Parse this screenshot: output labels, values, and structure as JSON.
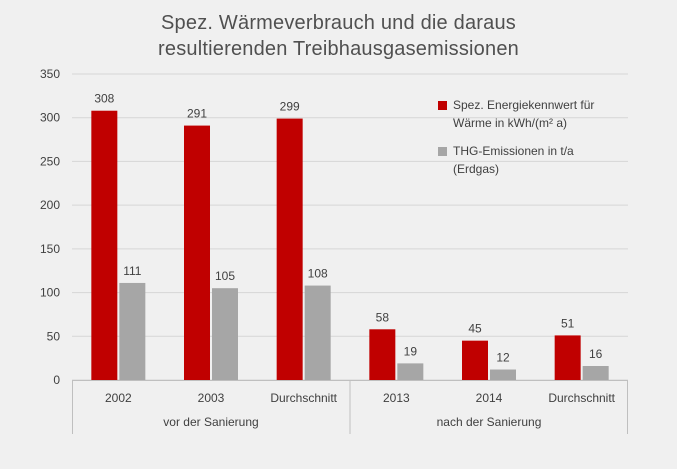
{
  "chart_data": {
    "type": "bar",
    "title": [
      "Spez. Wärmeverbrauch und die daraus",
      "resultierenden Treibhausgasemissionen"
    ],
    "categories": [
      "2002",
      "2003",
      "Durchschnitt",
      "2013",
      "2014",
      "Durchschnitt"
    ],
    "groups": [
      {
        "label": "vor der Sanierung",
        "categories": [
          0,
          1,
          2
        ]
      },
      {
        "label": "nach der Sanierung",
        "categories": [
          3,
          4,
          5
        ]
      }
    ],
    "series": [
      {
        "name": "Spez. Energiekennwert für Wärme in kWh/(m² a)",
        "values": [
          308,
          291,
          299,
          58,
          45,
          51
        ],
        "color": "#c00000"
      },
      {
        "name": "THG-Emissionen in t/a (Erdgas)",
        "values": [
          111,
          105,
          108,
          19,
          12,
          16
        ],
        "color": "#a6a6a6"
      }
    ],
    "ylim": [
      0,
      350
    ],
    "yticks": [
      "0",
      "50",
      "100",
      "150",
      "200",
      "250",
      "300",
      "350"
    ],
    "grid": true,
    "legend_position": "top-right",
    "data_labels": true
  },
  "legend": {
    "series1_line1": "Spez. Energiekennwert für",
    "series1_line2": "Wärme in kWh/(m² a)",
    "series2_line1": "THG-Emissionen in t/a",
    "series2_line2": "(Erdgas)"
  },
  "background_color": "#f0f0f0"
}
